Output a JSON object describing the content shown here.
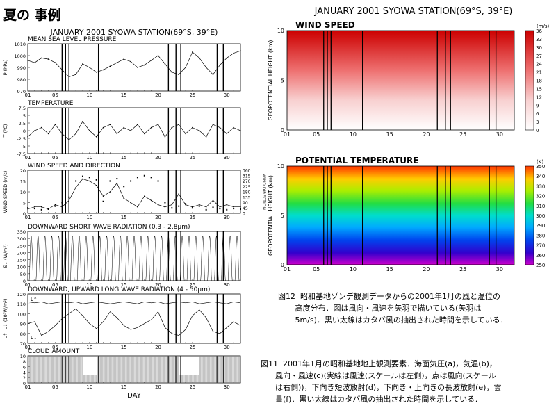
{
  "heading": "夏の 事例",
  "left": {
    "title": "JANUARY 2001 SYOWA STATION(69°S, 39°E)",
    "xlabel": "DAY",
    "day_ticks": [
      "01",
      "05",
      "10",
      "15",
      "20",
      "25",
      "30"
    ],
    "katabatic_days": [
      6.0,
      6.5,
      7.0,
      11.3,
      21.5,
      22.6,
      23.3,
      28.6,
      29.5
    ],
    "panels": [
      {
        "id": "mslp",
        "title": "MEAN SEA LEVEL PRESSURE",
        "ylabel": "P (hPa)",
        "yticks": [
          "1010",
          "1000",
          "990",
          "980",
          "970"
        ]
      },
      {
        "id": "temp",
        "title": "TEMPERATURE",
        "ylabel": "T (°C)",
        "yticks": [
          "7.5",
          "5",
          "2.5",
          "0",
          "-2.5",
          "-5",
          "-7.5"
        ]
      },
      {
        "id": "wind",
        "title": "WIND SPEED AND DIRECTION",
        "ylabel": "WIND SPEED (m/s)",
        "yticks": [
          "20",
          "15",
          "10",
          "5",
          "0"
        ],
        "ylabel2": "WIND DIRECTION",
        "yticks2": [
          "360",
          "315",
          "270",
          "225",
          "180",
          "135",
          "90",
          "45",
          "0"
        ]
      },
      {
        "id": "sw",
        "title": "DOWNWARD SHORT WAVE RADIATION (0.3 - 2.8μm)",
        "ylabel": "S↓ (W/m²)",
        "yticks": [
          "350",
          "300",
          "250",
          "200",
          "150",
          "100",
          "50",
          "0"
        ]
      },
      {
        "id": "lw",
        "title": "DOWNWARD, UPWARD LONG WAVE RADIATION (4 - 50μm)",
        "ylabel": "L↑, L↓ (10¹W/m²)",
        "yticks": [
          "120",
          "110",
          "100",
          "90",
          "80",
          "70"
        ],
        "l_up": "L↑",
        "l_down": "L↓"
      },
      {
        "id": "cloud",
        "title": "CLOUD AMOUNT",
        "ylabel": "",
        "yticks": [
          "10",
          "8",
          "6",
          "4",
          "2",
          "0"
        ]
      }
    ]
  },
  "right": {
    "title": "JANUARY 2001  SYOWA STATION(69°S, 39°E)",
    "wind": {
      "title": "WIND SPEED",
      "ylabel": "GEOPOTENTIAL HEIGHT (km)",
      "yticks": [
        "10",
        "5",
        "0"
      ],
      "unit": "(m/s)",
      "colorbar": [
        "36",
        "33",
        "30",
        "27",
        "24",
        "21",
        "18",
        "15",
        "12",
        "9",
        "6",
        "3",
        "0"
      ]
    },
    "theta": {
      "title": "POTENTIAL TEMPERATURE",
      "ylabel": "GEOPOTENTIAL HEIGHT (km)",
      "yticks": [
        "10",
        "5",
        "0"
      ],
      "unit": "(K)",
      "colorbar": [
        "350",
        "340",
        "330",
        "320",
        "310",
        "300",
        "290",
        "280",
        "270",
        "260",
        "250"
      ]
    }
  },
  "captions": {
    "fig12": "図12  昭和基地ゾンデ観測データからの2001年1月の風と温位の\n       高度分布．図は風向・風速を矢羽で描いている(矢羽は\n       5m/s)．黒い太線はカタバ風の抽出された時間を示している．",
    "fig11": "図11  2001年1月の昭和基地地上観測要素．海面気圧(a)，気温(b)，\n      風向・風速(c)(実線は風速(スケールは左側)，点は風向(スケール\n      は右側))，下向き短波放射(d)，下向き・上向きの長波放射(e)，雲\n      量(f)．黒い太線はカタバ風の抽出された時間を示している．"
  },
  "chart_data": [
    {
      "type": "line",
      "title": "MEAN SEA LEVEL PRESSURE",
      "ylabel": "P (hPa)",
      "ylim": [
        970,
        1010
      ],
      "x": [
        1,
        2,
        3,
        4,
        5,
        6,
        7,
        8,
        9,
        10,
        11,
        12,
        13,
        14,
        15,
        16,
        17,
        18,
        19,
        20,
        21,
        22,
        23,
        24,
        25,
        26,
        27,
        28,
        29,
        30,
        31,
        32
      ],
      "values": [
        996,
        994,
        998,
        997,
        994,
        988,
        982,
        984,
        993,
        990,
        986,
        988,
        991,
        994,
        997,
        995,
        990,
        992,
        996,
        1000,
        993,
        986,
        984,
        990,
        1003,
        998,
        990,
        984,
        992,
        998,
        1002,
        1004
      ]
    },
    {
      "type": "line",
      "title": "TEMPERATURE",
      "ylabel": "T (°C)",
      "ylim": [
        -7.5,
        7.5
      ],
      "x": [
        1,
        2,
        3,
        4,
        5,
        6,
        7,
        8,
        9,
        10,
        11,
        12,
        13,
        14,
        15,
        16,
        17,
        18,
        19,
        20,
        21,
        22,
        23,
        24,
        25,
        26,
        27,
        28,
        29,
        30,
        31,
        32
      ],
      "values": [
        -2,
        0,
        1,
        -1,
        2,
        -1,
        -3,
        -1,
        3,
        0,
        -2,
        1,
        2,
        -1,
        1,
        0,
        2,
        -1,
        1,
        2,
        -2,
        1,
        2,
        -1,
        1,
        0,
        -2,
        2,
        1,
        -1,
        1,
        0
      ]
    },
    {
      "type": "line",
      "title": "WIND SPEED AND DIRECTION",
      "ylabel": "WIND SPEED (m/s)",
      "ylim": [
        0,
        20
      ],
      "x": [
        1,
        2,
        3,
        4,
        5,
        6,
        7,
        8,
        9,
        10,
        11,
        12,
        13,
        14,
        15,
        16,
        17,
        18,
        19,
        20,
        21,
        22,
        23,
        24,
        25,
        26,
        27,
        28,
        29,
        30,
        31,
        32
      ],
      "values": [
        2,
        3,
        3,
        2,
        4,
        3,
        6,
        12,
        16,
        15,
        13,
        8,
        10,
        14,
        7,
        5,
        3,
        8,
        6,
        4,
        3,
        4,
        9,
        4,
        3,
        4,
        3,
        6,
        3,
        4,
        3,
        3
      ],
      "direction": [
        45,
        40,
        30,
        35,
        60,
        90,
        135,
        270,
        310,
        300,
        280,
        100,
        270,
        290,
        225,
        270,
        300,
        315,
        300,
        270,
        90,
        45,
        60,
        80,
        45,
        60,
        30,
        50,
        40,
        30,
        40,
        35
      ]
    },
    {
      "type": "line",
      "title": "DOWNWARD SHORT WAVE RADIATION (0.3 - 2.8μm)",
      "ylabel": "S↓ (W/m²)",
      "ylim": [
        0,
        350
      ],
      "x_range": [
        1,
        32
      ],
      "daily_max": 320
    },
    {
      "type": "line",
      "title": "DOWNWARD, UPWARD LONG WAVE RADIATION (4 - 50μm)",
      "ylabel": "L↑, L↓ (10¹W/m²)",
      "ylim": [
        70,
        120
      ],
      "x": [
        1,
        2,
        3,
        4,
        5,
        6,
        7,
        8,
        9,
        10,
        11,
        12,
        13,
        14,
        15,
        16,
        17,
        18,
        19,
        20,
        21,
        22,
        23,
        24,
        25,
        26,
        27,
        28,
        29,
        30,
        31,
        32
      ],
      "series": [
        {
          "name": "L↑",
          "values": [
            112,
            111,
            112,
            110,
            111,
            112,
            111,
            112,
            110,
            111,
            112,
            111,
            110,
            111,
            112,
            111,
            110,
            112,
            111,
            112,
            110,
            111,
            112,
            111,
            112,
            110,
            111,
            112,
            111,
            110,
            112,
            111
          ]
        },
        {
          "name": "L↓",
          "values": [
            90,
            92,
            78,
            82,
            88,
            95,
            100,
            105,
            98,
            90,
            85,
            92,
            102,
            96,
            88,
            84,
            86,
            90,
            94,
            102,
            86,
            80,
            78,
            84,
            98,
            104,
            96,
            82,
            80,
            86,
            92,
            88
          ]
        }
      ]
    },
    {
      "type": "bar",
      "title": "CLOUD AMOUNT",
      "ylim": [
        0,
        10
      ],
      "x_range": [
        1,
        32
      ]
    },
    {
      "type": "heatmap",
      "title": "WIND SPEED",
      "ylabel": "GEOPOTENTIAL HEIGHT (km)",
      "ylim": [
        0,
        10
      ],
      "x_range": [
        1,
        32
      ],
      "zlim": [
        0,
        36
      ],
      "unit": "m/s"
    },
    {
      "type": "heatmap",
      "title": "POTENTIAL TEMPERATURE",
      "ylabel": "GEOPOTENTIAL HEIGHT (km)",
      "ylim": [
        0,
        10
      ],
      "x_range": [
        1,
        32
      ],
      "zlim": [
        250,
        350
      ],
      "unit": "K"
    }
  ]
}
